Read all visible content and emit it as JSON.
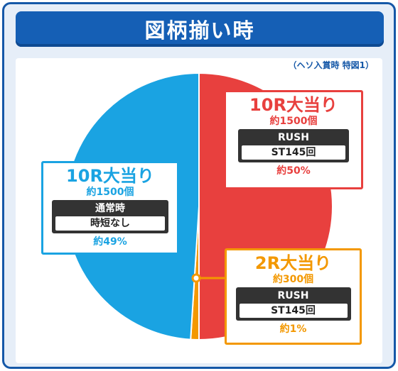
{
  "title": "図柄揃い時",
  "note": "（ヘソ入賞時 特図1）",
  "colors": {
    "red": "#e8403e",
    "blue": "#1aa3e2",
    "orange": "#f39800",
    "frame": "#1558a8"
  },
  "chart_data": {
    "type": "pie",
    "title": "図柄揃い時",
    "slices": [
      {
        "label": "10R大当り",
        "value": 50,
        "color": "#e8403e"
      },
      {
        "label": "2R大当り",
        "value": 1,
        "color": "#f39800"
      },
      {
        "label": "10R大当り",
        "value": 49,
        "color": "#1aa3e2"
      }
    ]
  },
  "callouts": {
    "red": {
      "head": "10R大当り",
      "sub": "約1500個",
      "box_label": "RUSH",
      "box_value": "ST145回",
      "pct": "約50%"
    },
    "blue": {
      "head": "10R大当り",
      "sub": "約1500個",
      "box_label": "通常時",
      "box_value": "時短なし",
      "pct": "約49%"
    },
    "orange": {
      "head": "2R大当り",
      "sub": "約300個",
      "box_label": "RUSH",
      "box_value": "ST145回",
      "pct": "約1%"
    }
  }
}
